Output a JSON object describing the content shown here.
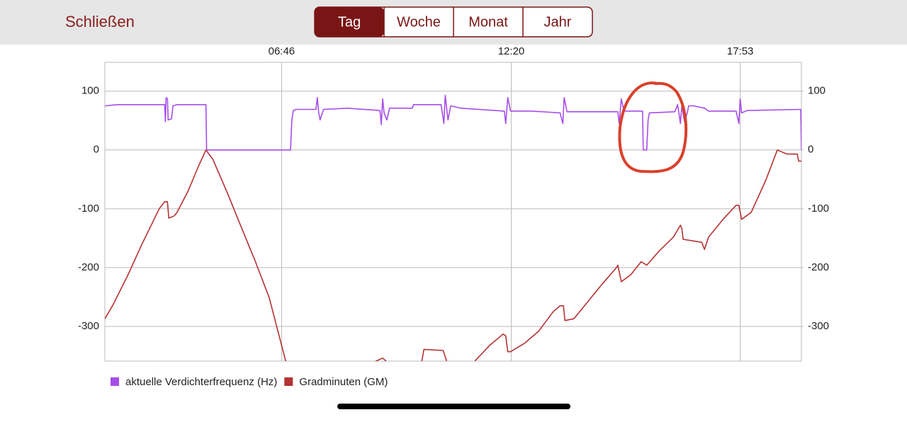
{
  "header": {
    "close": "Schließen",
    "tabs": [
      "Tag",
      "Woche",
      "Monat",
      "Jahr"
    ],
    "active_tab": 0
  },
  "chart_data": {
    "type": "line",
    "xlim": [
      149,
      1162
    ],
    "xticks": [
      {
        "value": 406,
        "label": "06:46"
      },
      {
        "value": 740,
        "label": "12:20"
      },
      {
        "value": 1073,
        "label": "17:53"
      }
    ],
    "ylim": [
      -359,
      149
    ],
    "yticks": [
      100,
      0,
      -100,
      -200,
      -300
    ],
    "y2lim": [
      -359,
      149
    ],
    "y2ticks": [
      100,
      0,
      -100,
      -200,
      -300
    ],
    "grid": true,
    "legend": "bottom-left",
    "series": [
      {
        "name": "aktuelle Verdichterfrequenz (Hz)",
        "color": "#a64ee8",
        "x": [
          149,
          167,
          236,
          237,
          238,
          240,
          241,
          246,
          248,
          254,
          296,
          297,
          419,
          421,
          423,
          427,
          456,
          458,
          460,
          462,
          467,
          502,
          549,
          551,
          553,
          555,
          559,
          563,
          596,
          598,
          638,
          642,
          644,
          648,
          652,
          667,
          730,
          732,
          735,
          739,
          770,
          811,
          815,
          817,
          821,
          895,
          897,
          900,
          904,
          931,
          932,
          937,
          939,
          941,
          978,
          982,
          986,
          988,
          992,
          996,
          998,
          1005,
          1021,
          1027,
          1067,
          1071,
          1073,
          1075,
          1083,
          1161,
          1162
        ],
        "values": [
          75,
          77,
          77,
          48,
          89,
          87,
          51,
          53,
          75,
          77,
          77,
          0,
          0,
          51,
          67,
          69,
          69,
          89,
          63,
          51,
          69,
          71,
          67,
          43,
          87,
          63,
          51,
          71,
          71,
          77,
          77,
          45,
          93,
          51,
          75,
          71,
          66,
          45,
          89,
          66,
          66,
          63,
          45,
          89,
          65,
          65,
          45,
          87,
          66,
          66,
          0,
          0,
          51,
          63,
          65,
          77,
          45,
          75,
          48,
          63,
          75,
          75,
          71,
          66,
          66,
          45,
          87,
          63,
          67,
          69,
          0
        ]
      },
      {
        "name": "Gradminuten (GM)",
        "color": "#b53232",
        "x": [
          149,
          161,
          182,
          203,
          218,
          228,
          236,
          240,
          242,
          250,
          254,
          270,
          285,
          296,
          306,
          326,
          347,
          368,
          388,
          404,
          412,
          470,
          543,
          553,
          558,
          580,
          610,
          613,
          641,
          646,
          660,
          687,
          708,
          728,
          732,
          735,
          739,
          759,
          780,
          801,
          811,
          816,
          818,
          831,
          852,
          873,
          893,
          895,
          900,
          914,
          929,
          937,
          955,
          976,
          986,
          988,
          990,
          1017,
          1021,
          1027,
          1048,
          1067,
          1071,
          1075,
          1089,
          1110,
          1127,
          1141,
          1156,
          1158,
          1162
        ],
        "values": [
          -287,
          -263,
          -214,
          -160,
          -124,
          -100,
          -88,
          -88,
          -116,
          -112,
          -106,
          -70,
          -28,
          0,
          -16,
          -70,
          -130,
          -190,
          -251,
          -323,
          -359,
          null,
          -359,
          -354,
          -359,
          null,
          -359,
          -339,
          -341,
          -359,
          null,
          -359,
          -333,
          -313,
          -316,
          -343,
          -343,
          -329,
          -308,
          -275,
          -265,
          -265,
          -290,
          -287,
          -257,
          -227,
          -200,
          -196,
          -224,
          -212,
          -190,
          -196,
          -172,
          -148,
          -128,
          -133,
          -152,
          -157,
          -169,
          -148,
          -118,
          -94,
          -94,
          -118,
          -106,
          -52,
          0,
          -7,
          -7,
          -19,
          -19
        ]
      }
    ]
  }
}
